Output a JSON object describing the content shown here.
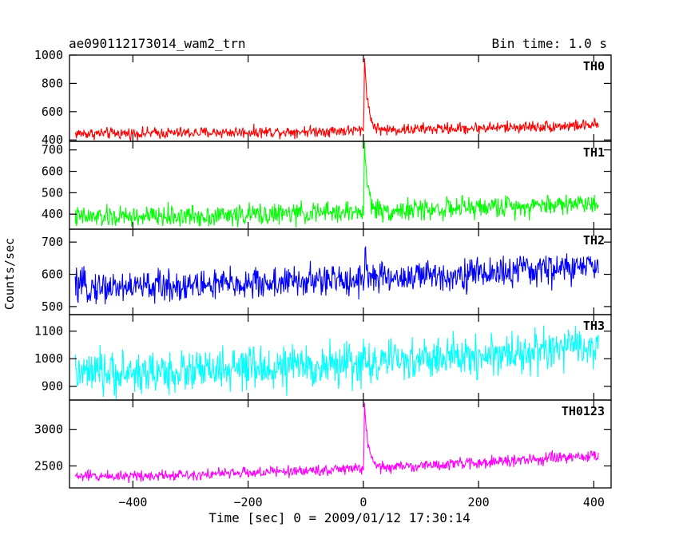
{
  "title_left": "ae090112173014_wam2_trn",
  "title_right": "Bin time: 1.0 s",
  "chart_data": {
    "type": "line",
    "xlabel": "Time [sec] 0 = 2009/01/12 17:30:14",
    "ylabel": "Counts/sec",
    "xlim": [
      -510,
      430
    ],
    "x_ticks": [
      -400,
      -200,
      0,
      200,
      400
    ],
    "x_tick_labels": [
      "−400",
      "−200",
      "0",
      "200",
      "400"
    ],
    "bin_time_s": 1.0,
    "x_start": -500,
    "x_end": 408,
    "panels": [
      {
        "name": "TH0",
        "color": "#ff0000",
        "ylim": [
          390,
          1000
        ],
        "y_ticks": [
          400,
          600,
          800,
          1000
        ],
        "baseline_start": 445,
        "baseline_end": 505,
        "noise": 45,
        "peak": {
          "x": 2,
          "y": 1000
        },
        "decay_s": 6
      },
      {
        "name": "TH1",
        "color": "#00ff00",
        "ylim": [
          330,
          740
        ],
        "y_ticks": [
          400,
          500,
          600,
          700
        ],
        "baseline_start": 385,
        "baseline_end": 455,
        "noise": 55,
        "peak": {
          "x": 2,
          "y": 720
        },
        "decay_s": 6
      },
      {
        "name": "TH2",
        "color": "#0000ff",
        "ylim": [
          475,
          740
        ],
        "y_ticks": [
          500,
          600,
          700
        ],
        "baseline_start": 560,
        "baseline_end": 625,
        "noise": 55,
        "peak": {
          "x": 3,
          "y": 690
        },
        "decay_s": 3
      },
      {
        "name": "TH3",
        "color": "#00ffff",
        "ylim": [
          850,
          1160
        ],
        "y_ticks": [
          900,
          1000,
          1100
        ],
        "baseline_start": 945,
        "baseline_end": 1045,
        "noise": 85,
        "peak": {
          "x": 0,
          "y": 1000
        },
        "decay_s": 1
      },
      {
        "name": "TH0123",
        "color": "#ff00ff",
        "ylim": [
          2200,
          3400
        ],
        "y_ticks": [
          2500,
          3000
        ],
        "baseline_start": 2360,
        "baseline_end": 2640,
        "noise": 85,
        "peak": {
          "x": 2,
          "y": 3380
        },
        "decay_s": 6
      }
    ]
  }
}
